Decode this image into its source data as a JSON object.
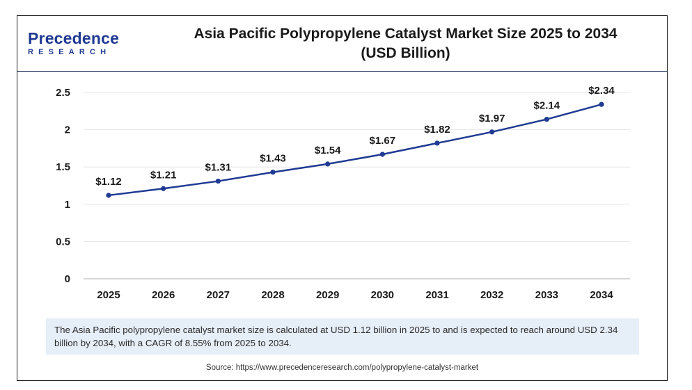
{
  "logo": {
    "main": "Precedence",
    "sub": "RESEARCH"
  },
  "title_line1": "Asia Pacific Polypropylene Catalyst Market Size 2025 to 2034",
  "title_line2": "(USD Billion)",
  "caption": "The Asia Pacific polypropylene catalyst market size is calculated at USD 1.12 billion in 2025 to and is expected to reach around USD 2.34 billion by 2034, with a CAGR of 8.55% from 2025 to 2034.",
  "source": "Source: https://www.precedenceresearch.com/polypropylene-catalyst-market",
  "colors": {
    "line": "#1f3a93",
    "accent": "#1f3a93",
    "caption_bg": "#e6eef8"
  },
  "chart_data": {
    "type": "line",
    "title": "Asia Pacific Polypropylene Catalyst Market Size 2025 to 2034 (USD Billion)",
    "x": [
      "2025",
      "2026",
      "2027",
      "2028",
      "2029",
      "2030",
      "2031",
      "2032",
      "2033",
      "2034"
    ],
    "series": [
      {
        "values": [
          1.12,
          1.21,
          1.31,
          1.43,
          1.54,
          1.67,
          1.82,
          1.97,
          2.14,
          2.34
        ],
        "labels": [
          "$1.12",
          "$1.21",
          "$1.31",
          "$1.43",
          "$1.54",
          "$1.67",
          "$1.82",
          "$1.97",
          "$2.14",
          "$2.34"
        ]
      }
    ],
    "yticks": [
      "0",
      "0.5",
      "1",
      "1.5",
      "2",
      "2.5"
    ],
    "ylim": [
      0,
      2.5
    ],
    "xlabel": "",
    "ylabel": "",
    "grid": true,
    "legend": "none"
  }
}
